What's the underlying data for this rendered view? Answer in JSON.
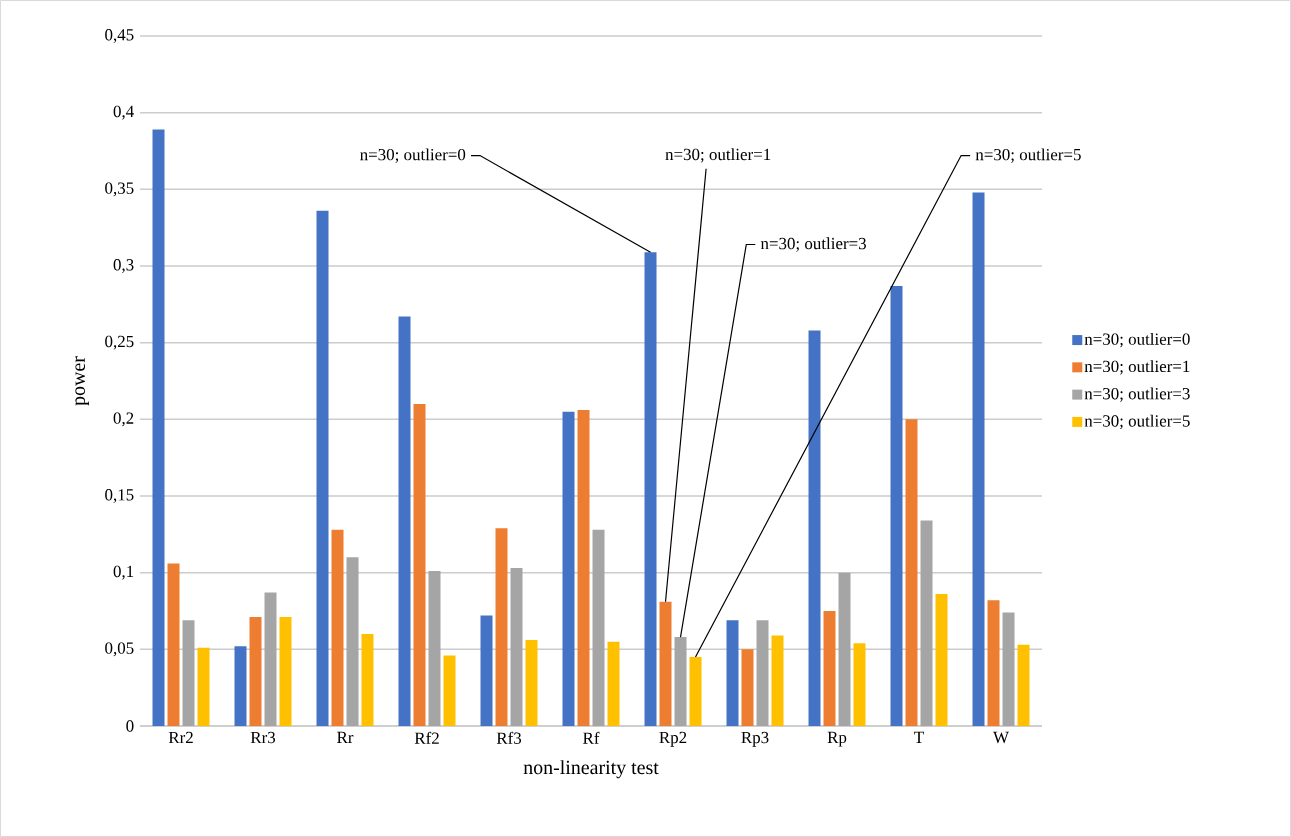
{
  "chart_data": {
    "type": "bar",
    "xlabel": "non-linearity test",
    "ylabel": "power",
    "categories": [
      "Rr2",
      "Rr3",
      "Rr",
      "Rf2",
      "Rf3",
      "Rf",
      "Rp2",
      "Rp3",
      "Rp",
      "T",
      "W"
    ],
    "series": [
      {
        "name": "n=30; outlier=0",
        "color": "#4472c4",
        "values": [
          0.389,
          0.052,
          0.336,
          0.267,
          0.072,
          0.205,
          0.309,
          0.069,
          0.258,
          0.287,
          0.348
        ],
        "value_labels": [
          null,
          null,
          null,
          null,
          null,
          null,
          "n=30; outlier=0",
          null,
          null,
          null,
          null
        ]
      },
      {
        "name": "n=30; outlier=1",
        "color": "#ed7d31",
        "values": [
          0.106,
          0.071,
          0.128,
          0.21,
          0.129,
          0.206,
          0.081,
          0.05,
          0.075,
          0.2,
          0.082
        ],
        "value_labels": [
          null,
          null,
          null,
          null,
          null,
          null,
          "n=30; outlier=1",
          null,
          null,
          null,
          null
        ]
      },
      {
        "name": "n=30; outlier=3",
        "color": "#a5a5a5",
        "values": [
          0.069,
          0.087,
          0.11,
          0.101,
          0.103,
          0.128,
          0.058,
          0.069,
          0.1,
          0.134,
          0.074
        ],
        "value_labels": [
          null,
          null,
          null,
          null,
          null,
          null,
          "n=30; outlier=3",
          null,
          null,
          null,
          null
        ]
      },
      {
        "name": "n=30; outlier=5",
        "color": "#ffc000",
        "values": [
          0.051,
          0.071,
          0.06,
          0.046,
          0.056,
          0.055,
          0.045,
          0.059,
          0.054,
          0.086,
          0.053
        ],
        "value_labels": [
          null,
          null,
          null,
          null,
          null,
          null,
          "n=30; outlier=5",
          null,
          null,
          null,
          null
        ]
      }
    ],
    "ylim": [
      0,
      0.45
    ],
    "yticks": [
      0,
      {
        "value": 0.05,
        "label": "0,05"
      },
      {
        "value": 0.1,
        "label": "0,1"
      },
      {
        "value": 0.15,
        "label": "0,15"
      },
      {
        "value": 0.2,
        "label": "0,2"
      },
      {
        "value": 0.25,
        "label": "0,25"
      },
      {
        "value": 0.3,
        "label": "0,3"
      },
      {
        "value": 0.35,
        "label": "0,35"
      },
      {
        "value": 0.4,
        "label": "0,4"
      },
      {
        "value": 0.45,
        "label": "0,45"
      }
    ],
    "grid": "y",
    "legend": "right"
  }
}
